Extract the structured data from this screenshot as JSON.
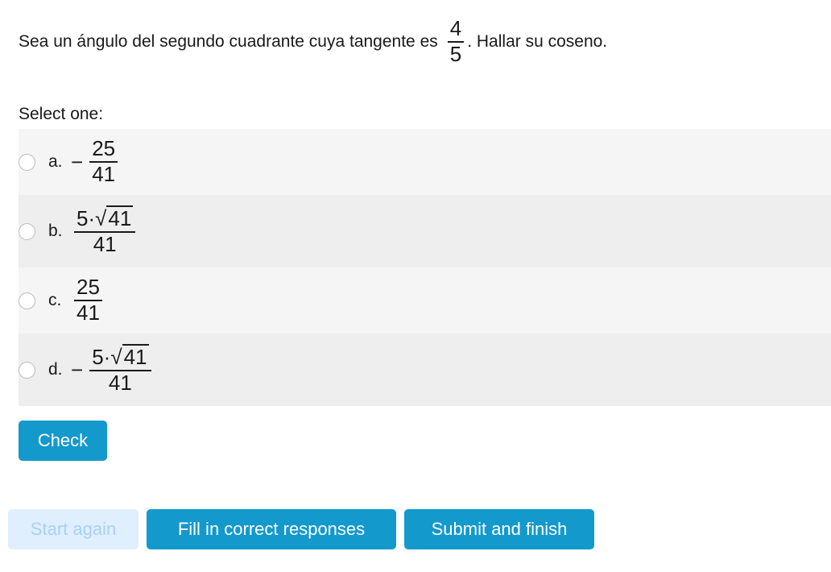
{
  "question": {
    "before": "Sea un ángulo del segundo cuadrante cuya tangente es",
    "frac_num": "4",
    "frac_den": "5",
    "after": ". Hallar su coseno."
  },
  "select_label": "Select one:",
  "options": [
    {
      "letter": "a.",
      "sign": "−",
      "num": "25",
      "den": "41"
    },
    {
      "letter": "b.",
      "sign": "",
      "coef": "5·",
      "radicand": "41",
      "den": "41"
    },
    {
      "letter": "c.",
      "sign": "",
      "num": "25",
      "den": "41"
    },
    {
      "letter": "d.",
      "sign": "−",
      "coef": "5·",
      "radicand": "41",
      "den": "41"
    }
  ],
  "buttons": {
    "check": "Check",
    "start_again": "Start again",
    "fill": "Fill in correct responses",
    "submit": "Submit and finish"
  },
  "colors": {
    "primary": "#1399cc",
    "disabled_bg": "#e0effd",
    "disabled_text": "#a9d1f7"
  }
}
